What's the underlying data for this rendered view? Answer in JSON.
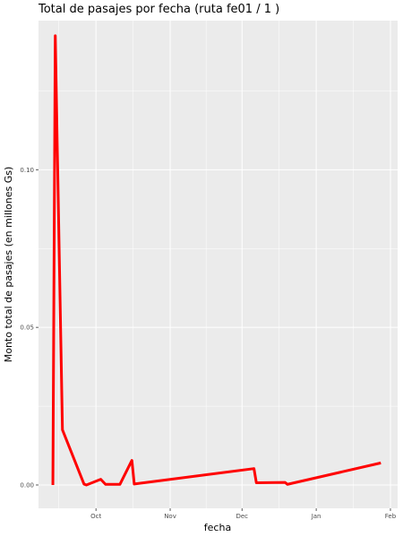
{
  "chart_data": {
    "type": "line",
    "title": "Total de pasajes por fecha (ruta fe01 / 1 )",
    "xlabel": "fecha",
    "ylabel": "Monto total de pasajes (en millones Gs)",
    "x_tick_labels": [
      {
        "date": "2023-10-01",
        "label": "Oct"
      },
      {
        "date": "2023-11-01",
        "label": "Nov"
      },
      {
        "date": "2023-12-01",
        "label": "Dec"
      },
      {
        "date": "2024-01-01",
        "label": "Jan"
      },
      {
        "date": "2024-02-01",
        "label": "Feb"
      }
    ],
    "y_tick_labels": [
      {
        "value": 0.0,
        "label": "0.00"
      },
      {
        "value": 0.05,
        "label": "0.05"
      },
      {
        "value": 0.1,
        "label": "0.10"
      }
    ],
    "xlim": [
      "2023-09-07",
      "2024-02-04"
    ],
    "ylim": [
      -0.0074,
      0.1473
    ],
    "grid": true,
    "colors": {
      "line": "#ff0000",
      "panel": "#ebebeb",
      "grid": "#ffffff"
    },
    "series": [
      {
        "values": [
          {
            "x": "2023-09-13",
            "y": 0.0
          },
          {
            "x": "2023-09-14",
            "y": 0.1425
          },
          {
            "x": "2023-09-17",
            "y": 0.0175
          },
          {
            "x": "2023-09-26",
            "y": 0.0003
          },
          {
            "x": "2023-09-27",
            "y": 0.0
          },
          {
            "x": "2023-10-03",
            "y": 0.0018
          },
          {
            "x": "2023-10-05",
            "y": 0.0002
          },
          {
            "x": "2023-10-11",
            "y": 0.0002
          },
          {
            "x": "2023-10-16",
            "y": 0.0078
          },
          {
            "x": "2023-10-17",
            "y": 0.0003
          },
          {
            "x": "2023-12-06",
            "y": 0.0052
          },
          {
            "x": "2023-12-07",
            "y": 0.0007
          },
          {
            "x": "2023-12-19",
            "y": 0.0008
          },
          {
            "x": "2023-12-20",
            "y": 0.0002
          },
          {
            "x": "2024-01-28",
            "y": 0.007
          }
        ]
      }
    ]
  }
}
